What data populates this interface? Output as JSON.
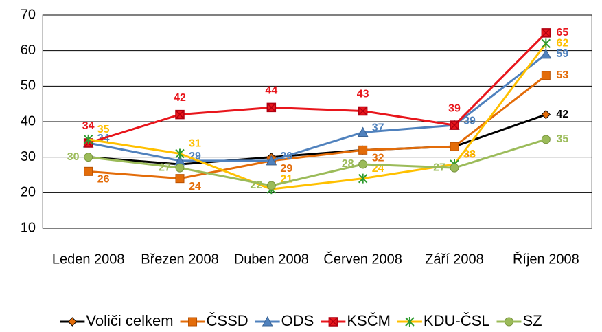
{
  "chart_data": {
    "type": "line",
    "categories": [
      "Leden 2008",
      "Březen 2008",
      "Duben 2008",
      "Červen 2008",
      "Září 2008",
      "Říjen 2008"
    ],
    "series": [
      {
        "name": "Voliči celkem",
        "color": "#000000",
        "marker": "diamond",
        "data_labels": "last",
        "values": [
          30,
          28,
          30,
          32,
          33,
          42
        ]
      },
      {
        "name": "ČSSD",
        "color": "#E36C09",
        "marker": "square",
        "data_labels": "all",
        "values": [
          26,
          24,
          29,
          32,
          33,
          53
        ]
      },
      {
        "name": "ODS",
        "color": "#4F81BD",
        "marker": "triangle",
        "data_labels": "all",
        "values": [
          34,
          29,
          29,
          37,
          39,
          59
        ]
      },
      {
        "name": "KSČM",
        "color": "#E8161C",
        "marker": "square-x",
        "data_labels": "all",
        "values": [
          34,
          42,
          44,
          43,
          39,
          65
        ]
      },
      {
        "name": "KDU-ČSL",
        "color": "#FFC000",
        "marker": "star",
        "data_labels": "all",
        "values": [
          35,
          31,
          21,
          24,
          28,
          62
        ]
      },
      {
        "name": "SZ",
        "color": "#9BBB59",
        "marker": "circle",
        "data_labels": "all",
        "values": [
          30,
          27,
          22,
          28,
          27,
          35
        ]
      }
    ],
    "ylim": [
      10,
      70
    ],
    "yticks": [
      10,
      20,
      30,
      40,
      50,
      60,
      70
    ],
    "grid": true,
    "legend": "bottom"
  }
}
